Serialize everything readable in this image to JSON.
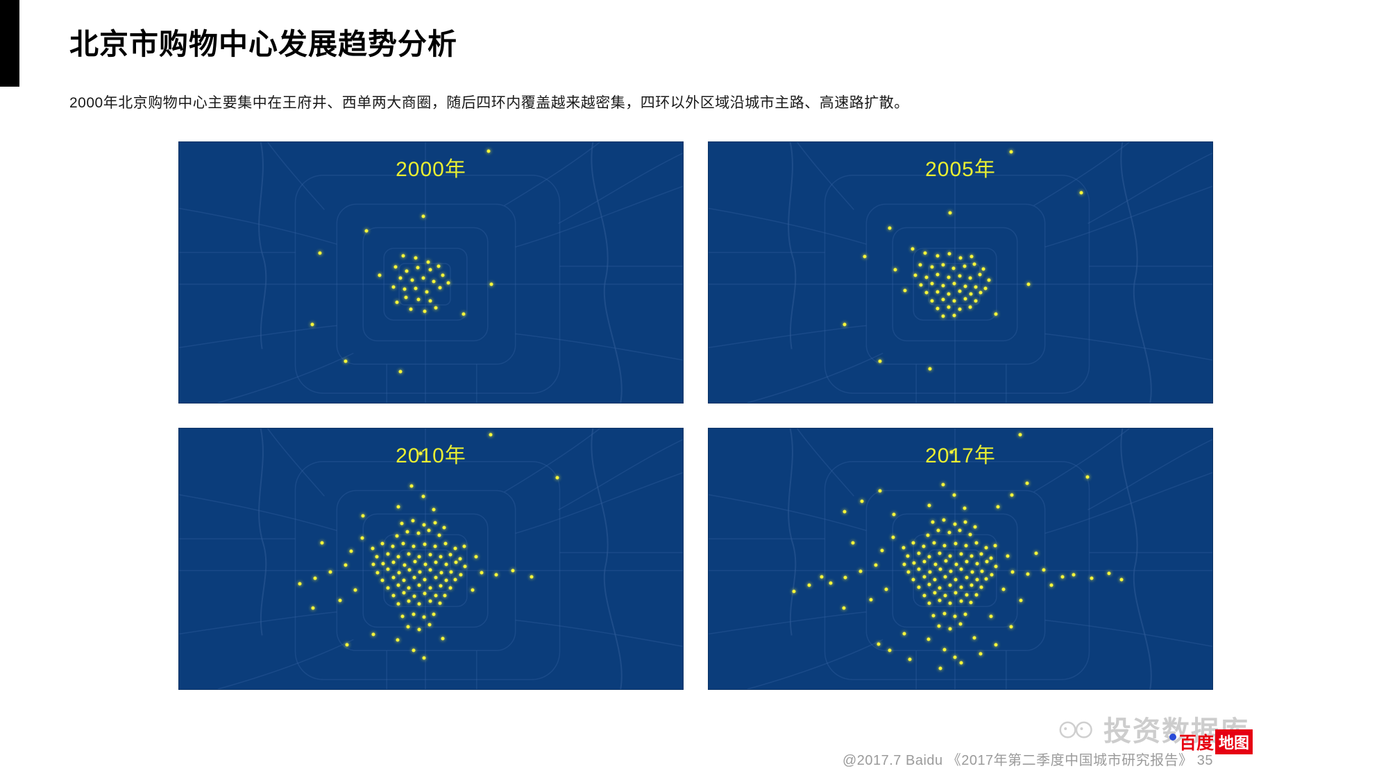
{
  "page": {
    "title": "北京市购物中心发展趋势分析",
    "subtitle": "2000年北京购物中心主要集中在王府井、西单两大商圈，随后四环内覆盖越来越密集，四环以外区域沿城市主路、高速路扩散。",
    "footer": "@2017.7 Baidu 《2017年第二季度中国城市研究报告》 35"
  },
  "watermark": {
    "text": "投资数据库",
    "logo_prefix": "百度",
    "logo_badge": "地图"
  },
  "colors": {
    "map_background": "#0b3d7b",
    "road_line": "#3a68a6",
    "river_line": "#2f5b97",
    "dot": "#f6f63a",
    "year_label": "#e9ee32",
    "accent_bar": "#000000"
  },
  "maps": [
    {
      "year_label": "2000年",
      "dots": [
        [
          61.5,
          3.5
        ],
        [
          48.5,
          28.5
        ],
        [
          37.2,
          34
        ],
        [
          44.5,
          43.5
        ],
        [
          47,
          44.5
        ],
        [
          49.5,
          46
        ],
        [
          43,
          48
        ],
        [
          45.2,
          49.5
        ],
        [
          47.4,
          48.2
        ],
        [
          49.8,
          49
        ],
        [
          51.5,
          47.5
        ],
        [
          44,
          52
        ],
        [
          46.3,
          53
        ],
        [
          48.5,
          52
        ],
        [
          50.6,
          53.5
        ],
        [
          52.4,
          51
        ],
        [
          42.5,
          55.5
        ],
        [
          44.8,
          56.5
        ],
        [
          47,
          56
        ],
        [
          49.2,
          57.5
        ],
        [
          51.8,
          55.8
        ],
        [
          53.5,
          54
        ],
        [
          45,
          59.5
        ],
        [
          47.5,
          60.5
        ],
        [
          49.8,
          61
        ],
        [
          43.2,
          61.5
        ],
        [
          46,
          64
        ],
        [
          48.8,
          65
        ],
        [
          51,
          63.5
        ],
        [
          39.8,
          51
        ],
        [
          28,
          42.5
        ],
        [
          26.5,
          70
        ],
        [
          33,
          84
        ],
        [
          44,
          88
        ],
        [
          56.5,
          66
        ],
        [
          62,
          54.5
        ]
      ]
    },
    {
      "year_label": "2005年",
      "dots": [
        [
          60,
          3.8
        ],
        [
          74,
          19.5
        ],
        [
          48,
          27
        ],
        [
          36,
          33
        ],
        [
          40.5,
          41
        ],
        [
          43,
          42.5
        ],
        [
          45.5,
          43.5
        ],
        [
          47.8,
          42.8
        ],
        [
          50,
          44.5
        ],
        [
          52.2,
          43.8
        ],
        [
          42,
          47
        ],
        [
          44.3,
          47.8
        ],
        [
          46.5,
          47
        ],
        [
          48.6,
          48.5
        ],
        [
          50.8,
          47.6
        ],
        [
          52.8,
          46.8
        ],
        [
          54.6,
          48.8
        ],
        [
          41,
          51
        ],
        [
          43.2,
          51.8
        ],
        [
          45.4,
          50.8
        ],
        [
          47.6,
          51.8
        ],
        [
          49.8,
          51.2
        ],
        [
          51.9,
          52
        ],
        [
          53.8,
          50.8
        ],
        [
          55.6,
          52.8
        ],
        [
          42.2,
          54.8
        ],
        [
          44.4,
          54.2
        ],
        [
          46.6,
          55
        ],
        [
          48.7,
          54.2
        ],
        [
          50.9,
          55.2
        ],
        [
          53,
          55.6
        ],
        [
          54.9,
          56.2
        ],
        [
          43.3,
          57.8
        ],
        [
          45.5,
          57.4
        ],
        [
          47.7,
          58.2
        ],
        [
          49.9,
          57.2
        ],
        [
          52,
          58.2
        ],
        [
          54,
          57.6
        ],
        [
          44.4,
          60.8
        ],
        [
          46.6,
          60.4
        ],
        [
          48.8,
          61
        ],
        [
          51,
          60.2
        ],
        [
          53,
          61
        ],
        [
          45.5,
          63.8
        ],
        [
          47.7,
          63.4
        ],
        [
          49.9,
          64
        ],
        [
          51.9,
          63.2
        ],
        [
          46.6,
          66.8
        ],
        [
          48.8,
          66.4
        ],
        [
          39,
          57
        ],
        [
          37,
          49
        ],
        [
          31,
          44
        ],
        [
          27,
          70
        ],
        [
          34,
          84
        ],
        [
          44,
          87
        ],
        [
          57,
          66
        ],
        [
          63.5,
          54.5
        ]
      ]
    },
    {
      "year_label": "2010年",
      "dots": [
        [
          61.8,
          2.5
        ],
        [
          48,
          9.5
        ],
        [
          75,
          19
        ],
        [
          46.2,
          22
        ],
        [
          48.5,
          26
        ],
        [
          43.5,
          30
        ],
        [
          50.5,
          31
        ],
        [
          36.5,
          33.5
        ],
        [
          44.2,
          36.5
        ],
        [
          46.4,
          35.5
        ],
        [
          48.6,
          37
        ],
        [
          50.8,
          36.2
        ],
        [
          52.6,
          38
        ],
        [
          45.3,
          39.5
        ],
        [
          47.5,
          40.2
        ],
        [
          49.6,
          39.2
        ],
        [
          51.6,
          41
        ],
        [
          43.2,
          41.2
        ],
        [
          38.4,
          46
        ],
        [
          40.3,
          44.2
        ],
        [
          42.4,
          45.3
        ],
        [
          44.5,
          44.1
        ],
        [
          46.6,
          45.2
        ],
        [
          48.7,
          44.3
        ],
        [
          50.8,
          45.1
        ],
        [
          52.9,
          44.2
        ],
        [
          54.8,
          46
        ],
        [
          56.6,
          45.2
        ],
        [
          39.3,
          49.2
        ],
        [
          41.4,
          48.1
        ],
        [
          43.5,
          49.3
        ],
        [
          45.6,
          48.2
        ],
        [
          47.7,
          49.1
        ],
        [
          49.8,
          48.3
        ],
        [
          51.9,
          49.2
        ],
        [
          53.9,
          48.4
        ],
        [
          55.8,
          50
        ],
        [
          38.5,
          52.2
        ],
        [
          40.5,
          51.8
        ],
        [
          42.6,
          51.2
        ],
        [
          44.7,
          52.3
        ],
        [
          46.8,
          51.1
        ],
        [
          48.9,
          52.2
        ],
        [
          51,
          51.3
        ],
        [
          53,
          52.1
        ],
        [
          54.9,
          51.2
        ],
        [
          56.7,
          53
        ],
        [
          39.4,
          55.2
        ],
        [
          41.5,
          54.1
        ],
        [
          43.6,
          55.3
        ],
        [
          45.7,
          54.2
        ],
        [
          47.8,
          55.1
        ],
        [
          49.9,
          54.3
        ],
        [
          52,
          55.2
        ],
        [
          54,
          55.1
        ],
        [
          55.9,
          56.2
        ],
        [
          40.4,
          58.2
        ],
        [
          42.5,
          57.1
        ],
        [
          44.6,
          58.3
        ],
        [
          46.7,
          57.2
        ],
        [
          48.8,
          58.1
        ],
        [
          50.9,
          57.3
        ],
        [
          53,
          58.2
        ],
        [
          54.8,
          58
        ],
        [
          41.4,
          61.2
        ],
        [
          43.5,
          60.1
        ],
        [
          45.6,
          61.3
        ],
        [
          47.7,
          60.2
        ],
        [
          49.8,
          61.1
        ],
        [
          51.9,
          60.3
        ],
        [
          53.8,
          61.2
        ],
        [
          42.5,
          64.2
        ],
        [
          44.6,
          63.1
        ],
        [
          46.7,
          64.3
        ],
        [
          48.8,
          63.2
        ],
        [
          50.9,
          64.1
        ],
        [
          52.8,
          64
        ],
        [
          43.5,
          67.2
        ],
        [
          45.6,
          66.1
        ],
        [
          47.7,
          67.2
        ],
        [
          49.8,
          66.3
        ],
        [
          51.8,
          67
        ],
        [
          33,
          52.5
        ],
        [
          30,
          55
        ],
        [
          27,
          57.5
        ],
        [
          24,
          59.5
        ],
        [
          60,
          55.2
        ],
        [
          63,
          56
        ],
        [
          66.2,
          54.5
        ],
        [
          70,
          57
        ],
        [
          35,
          62
        ],
        [
          32,
          66
        ],
        [
          44.3,
          72
        ],
        [
          46.5,
          71.2
        ],
        [
          48.6,
          72.3
        ],
        [
          50.6,
          71.4
        ],
        [
          45.4,
          76
        ],
        [
          47.6,
          77
        ],
        [
          49.7,
          75.2
        ],
        [
          43.4,
          81
        ],
        [
          46.5,
          85
        ],
        [
          48.6,
          88
        ],
        [
          38.5,
          79
        ],
        [
          52.4,
          80.5
        ],
        [
          58.2,
          62
        ],
        [
          59,
          49.2
        ],
        [
          36.3,
          42
        ],
        [
          34.2,
          47
        ],
        [
          28.4,
          44
        ],
        [
          26.6,
          69
        ],
        [
          33.4,
          83
        ]
      ]
    },
    {
      "year_label": "2017年",
      "dots": [
        [
          61.8,
          2.5
        ],
        [
          48.2,
          9
        ],
        [
          75.2,
          18.5
        ],
        [
          46.5,
          21.5
        ],
        [
          48.8,
          25.5
        ],
        [
          43.8,
          29.5
        ],
        [
          50.8,
          30.5
        ],
        [
          36.8,
          33
        ],
        [
          57.5,
          30
        ],
        [
          60.2,
          25.5
        ],
        [
          63.2,
          21
        ],
        [
          34,
          24
        ],
        [
          30.5,
          28
        ],
        [
          27,
          32
        ],
        [
          44.5,
          36
        ],
        [
          46.7,
          35.2
        ],
        [
          48.9,
          36.8
        ],
        [
          51,
          36
        ],
        [
          52.9,
          37.8
        ],
        [
          45.6,
          39.2
        ],
        [
          47.8,
          40
        ],
        [
          49.9,
          39
        ],
        [
          51.9,
          40.8
        ],
        [
          43.5,
          41
        ],
        [
          38.7,
          45.8
        ],
        [
          40.6,
          44
        ],
        [
          42.7,
          45.1
        ],
        [
          44.8,
          43.9
        ],
        [
          46.9,
          45
        ],
        [
          49,
          44.1
        ],
        [
          51.1,
          44.9
        ],
        [
          53.2,
          44
        ],
        [
          55.1,
          45.8
        ],
        [
          56.9,
          45
        ],
        [
          39.6,
          49
        ],
        [
          41.7,
          47.9
        ],
        [
          43.8,
          49.1
        ],
        [
          45.9,
          48
        ],
        [
          48,
          48.9
        ],
        [
          50.1,
          48.1
        ],
        [
          52.2,
          49
        ],
        [
          54.2,
          48.2
        ],
        [
          56.1,
          49.8
        ],
        [
          38.8,
          52
        ],
        [
          40.8,
          51.6
        ],
        [
          42.9,
          51
        ],
        [
          45,
          52.1
        ],
        [
          47.1,
          50.9
        ],
        [
          49.2,
          52
        ],
        [
          51.3,
          51.1
        ],
        [
          53.3,
          51.9
        ],
        [
          55.2,
          51
        ],
        [
          57,
          52.8
        ],
        [
          39.7,
          55
        ],
        [
          41.8,
          53.9
        ],
        [
          43.9,
          55.1
        ],
        [
          46,
          54
        ],
        [
          48.1,
          54.9
        ],
        [
          50.2,
          54.1
        ],
        [
          52.3,
          55
        ],
        [
          54.3,
          54.9
        ],
        [
          56.2,
          56
        ],
        [
          40.7,
          58
        ],
        [
          42.8,
          56.9
        ],
        [
          44.9,
          58.1
        ],
        [
          47,
          57
        ],
        [
          49.1,
          57.9
        ],
        [
          51.2,
          57.1
        ],
        [
          53.3,
          58
        ],
        [
          55.1,
          57.8
        ],
        [
          41.7,
          61
        ],
        [
          43.8,
          59.9
        ],
        [
          45.9,
          61.1
        ],
        [
          48,
          60
        ],
        [
          50.1,
          60.9
        ],
        [
          52.2,
          60.1
        ],
        [
          54.1,
          61
        ],
        [
          42.8,
          64
        ],
        [
          44.9,
          62.9
        ],
        [
          47,
          64.1
        ],
        [
          49.1,
          63
        ],
        [
          51.2,
          63.9
        ],
        [
          53.1,
          63.8
        ],
        [
          43.8,
          67
        ],
        [
          45.9,
          65.9
        ],
        [
          48,
          67
        ],
        [
          50.1,
          66.1
        ],
        [
          52.1,
          66.8
        ],
        [
          33.2,
          52.3
        ],
        [
          30.2,
          54.8
        ],
        [
          27.2,
          57.3
        ],
        [
          24.2,
          59.3
        ],
        [
          20,
          60
        ],
        [
          17,
          62.5
        ],
        [
          22.5,
          57
        ],
        [
          60.3,
          55
        ],
        [
          63.3,
          55.8
        ],
        [
          66.5,
          54.3
        ],
        [
          70.3,
          56.8
        ],
        [
          72.5,
          56
        ],
        [
          76,
          57.5
        ],
        [
          79.5,
          55.5
        ],
        [
          82,
          58
        ],
        [
          35.3,
          61.8
        ],
        [
          32.3,
          65.8
        ],
        [
          44.6,
          71.8
        ],
        [
          46.8,
          71
        ],
        [
          48.9,
          72.1
        ],
        [
          50.9,
          71.2
        ],
        [
          45.7,
          75.8
        ],
        [
          47.9,
          76.8
        ],
        [
          50,
          75
        ],
        [
          43.7,
          80.8
        ],
        [
          46.8,
          84.8
        ],
        [
          48.9,
          87.8
        ],
        [
          38.8,
          78.8
        ],
        [
          52.7,
          80.3
        ],
        [
          46,
          92
        ],
        [
          50.2,
          90
        ],
        [
          54,
          86.5
        ],
        [
          40,
          88.5
        ],
        [
          36,
          85
        ],
        [
          57,
          83
        ],
        [
          58.5,
          61.8
        ],
        [
          59.3,
          49
        ],
        [
          36.6,
          41.8
        ],
        [
          34.5,
          46.8
        ],
        [
          28.7,
          43.8
        ],
        [
          26.9,
          68.8
        ],
        [
          33.7,
          82.8
        ],
        [
          65,
          48
        ],
        [
          68,
          60
        ],
        [
          62,
          66
        ],
        [
          56,
          72
        ],
        [
          60,
          76
        ]
      ]
    }
  ]
}
